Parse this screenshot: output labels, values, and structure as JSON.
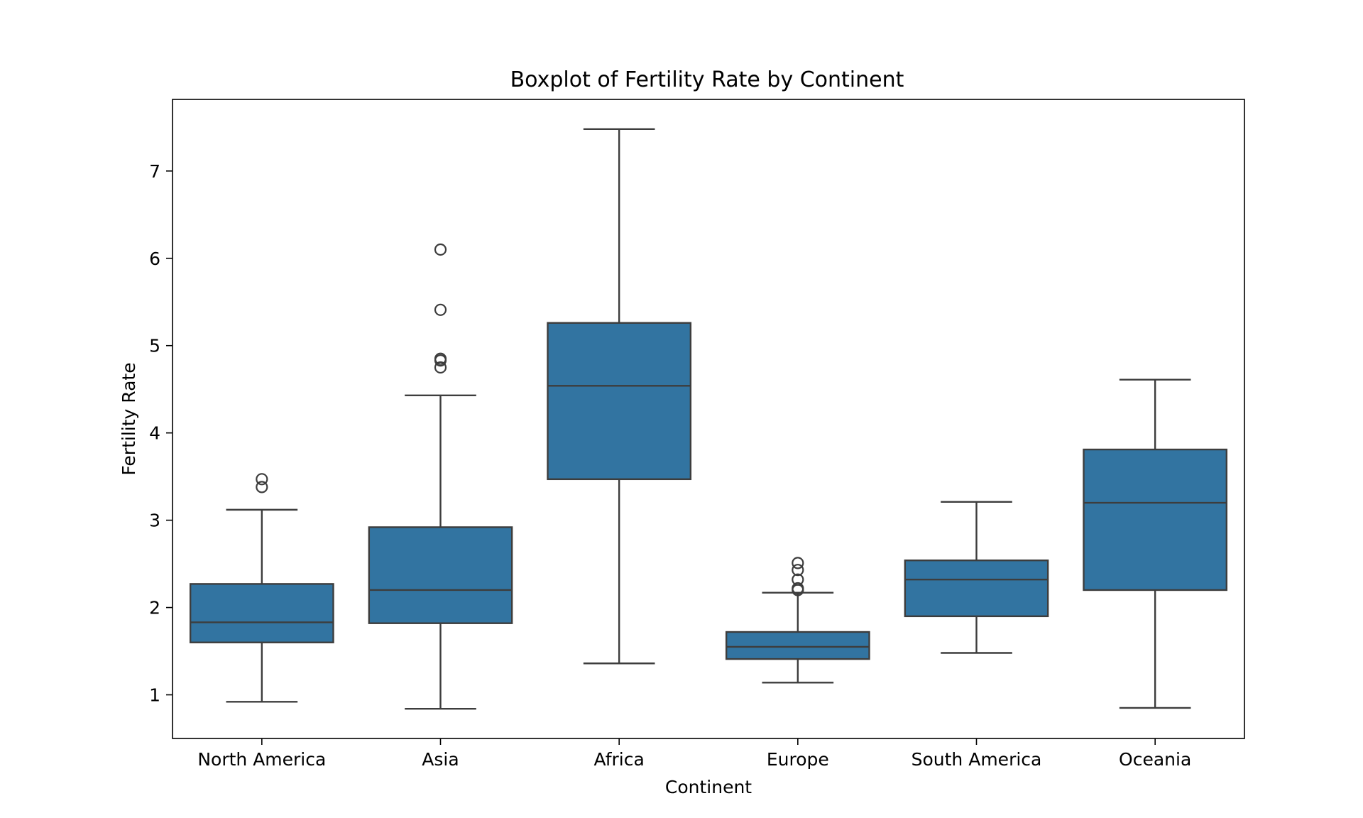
{
  "chart_data": {
    "type": "box",
    "title": "Boxplot of Fertility Rate by Continent",
    "xlabel": "Continent",
    "ylabel": "Fertility Rate",
    "ylim": [
      0.5,
      7.82
    ],
    "yticks": [
      1,
      2,
      3,
      4,
      5,
      6,
      7
    ],
    "grid": false,
    "color": "#3274a1",
    "edge_color": "#3d3d3d",
    "categories": [
      "North America",
      "Asia",
      "Africa",
      "Europe",
      "South America",
      "Oceania"
    ],
    "boxes": [
      {
        "category": "North America",
        "whisker_low": 0.92,
        "q1": 1.6,
        "median": 1.83,
        "q3": 2.27,
        "whisker_high": 3.12,
        "outliers": [
          3.38,
          3.47
        ]
      },
      {
        "category": "Asia",
        "whisker_low": 0.84,
        "q1": 1.82,
        "median": 2.2,
        "q3": 2.92,
        "whisker_high": 4.43,
        "outliers": [
          4.75,
          4.83,
          4.85,
          5.41,
          6.1
        ]
      },
      {
        "category": "Africa",
        "whisker_low": 1.36,
        "q1": 3.47,
        "median": 4.54,
        "q3": 5.26,
        "whisker_high": 7.48,
        "outliers": []
      },
      {
        "category": "Europe",
        "whisker_low": 1.14,
        "q1": 1.41,
        "median": 1.55,
        "q3": 1.72,
        "whisker_high": 2.17,
        "outliers": [
          2.2,
          2.22,
          2.32,
          2.43,
          2.51
        ]
      },
      {
        "category": "South America",
        "whisker_low": 1.48,
        "q1": 1.9,
        "median": 2.32,
        "q3": 2.54,
        "whisker_high": 3.21,
        "outliers": []
      },
      {
        "category": "Oceania",
        "whisker_low": 0.85,
        "q1": 2.2,
        "median": 3.2,
        "q3": 3.81,
        "whisker_high": 4.61,
        "outliers": []
      }
    ]
  }
}
